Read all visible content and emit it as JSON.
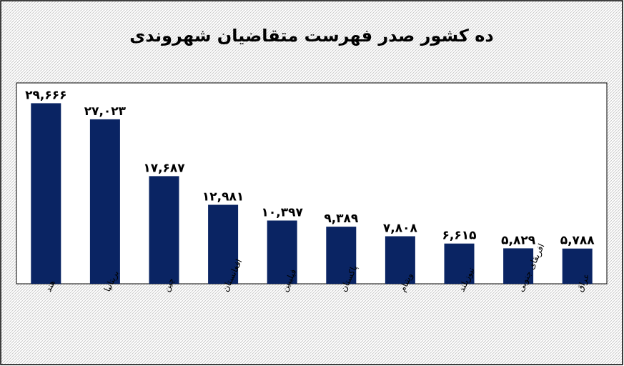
{
  "colors": {
    "bar": "#0a2463",
    "plot_bg": "#ffffff",
    "chart_bg_hatch": "#c9c9c9",
    "border": "#000000"
  },
  "chart_data": {
    "type": "bar",
    "title": "ده کشور صدر فهرست متقاضیان شهروندی",
    "xlabel": "",
    "ylabel": "",
    "ylim": [
      0,
      33000
    ],
    "grid": false,
    "legend": "none",
    "categories": [
      "هند",
      "بریتانیا",
      "چین",
      "افغانستان",
      "فیلیپین",
      "پاکستان",
      "ویتنام",
      "نیوزیلند",
      "افریقای جنوبی",
      "عراق"
    ],
    "values": [
      29666,
      27023,
      17687,
      12981,
      10397,
      9389,
      7808,
      6615,
      5829,
      5788
    ],
    "value_labels": [
      "۲۹,۶۶۶",
      "۲۷,۰۲۳",
      "۱۷,۶۸۷",
      "۱۲,۹۸۱",
      "۱۰,۳۹۷",
      "۹,۳۸۹",
      "۷,۸۰۸",
      "۶,۶۱۵",
      "۵,۸۲۹",
      "۵,۷۸۸"
    ]
  }
}
